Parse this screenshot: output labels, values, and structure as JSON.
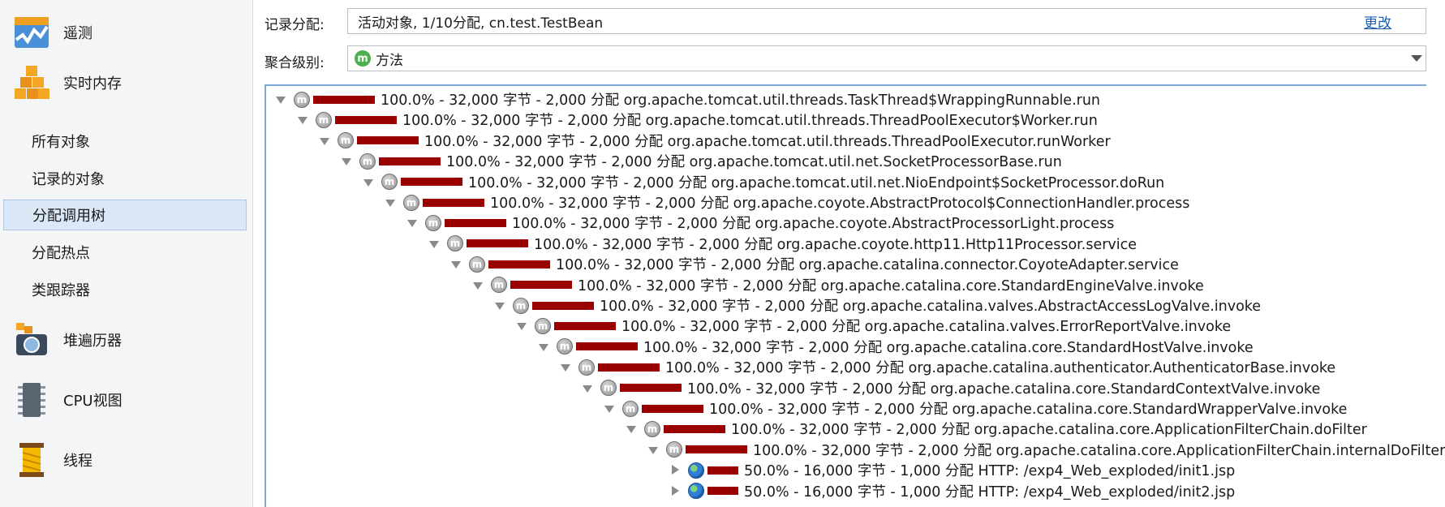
{
  "sidebar": {
    "sections": [
      {
        "label": "遥测",
        "icon": "telemetry-icon"
      },
      {
        "label": "实时内存",
        "icon": "live-memory-icon"
      },
      {
        "label": "堆遍历器",
        "icon": "heap-walker-icon"
      },
      {
        "label": "CPU视图",
        "icon": "cpu-view-icon"
      },
      {
        "label": "线程",
        "icon": "threads-icon"
      }
    ],
    "live_memory_items": [
      {
        "label": "所有对象"
      },
      {
        "label": "记录的对象"
      },
      {
        "label": "分配调用树"
      },
      {
        "label": "分配热点"
      },
      {
        "label": "类跟踪器"
      }
    ],
    "selected_item": "分配调用树"
  },
  "header": {
    "recorded_label": "记录分配:",
    "recorded_value": "活动对象, 1/10分配, cn.test.TestBean",
    "change_link": "更改",
    "aggregation_label": "聚合级别:",
    "aggregation_icon_letter": "m",
    "aggregation_value": "方法"
  },
  "tree": {
    "rows": [
      {
        "text": "100.0% - 32,000 字节 - 2,000 分配 org.apache.tomcat.util.threads.TaskThread$WrappingRunnable.run",
        "percent": 100.0,
        "toggle": "down",
        "icon": "method-icon"
      },
      {
        "text": "100.0% - 32,000 字节 - 2,000 分配 org.apache.tomcat.util.threads.ThreadPoolExecutor$Worker.run",
        "percent": 100.0,
        "toggle": "down",
        "icon": "method-icon"
      },
      {
        "text": "100.0% - 32,000 字节 - 2,000 分配 org.apache.tomcat.util.threads.ThreadPoolExecutor.runWorker",
        "percent": 100.0,
        "toggle": "down",
        "icon": "method-icon"
      },
      {
        "text": "100.0% - 32,000 字节 - 2,000 分配 org.apache.tomcat.util.net.SocketProcessorBase.run",
        "percent": 100.0,
        "toggle": "down",
        "icon": "method-icon"
      },
      {
        "text": "100.0% - 32,000 字节 - 2,000 分配 org.apache.tomcat.util.net.NioEndpoint$SocketProcessor.doRun",
        "percent": 100.0,
        "toggle": "down",
        "icon": "method-icon"
      },
      {
        "text": "100.0% - 32,000 字节 - 2,000 分配 org.apache.coyote.AbstractProtocol$ConnectionHandler.process",
        "percent": 100.0,
        "toggle": "down",
        "icon": "method-icon"
      },
      {
        "text": "100.0% - 32,000 字节 - 2,000 分配 org.apache.coyote.AbstractProcessorLight.process",
        "percent": 100.0,
        "toggle": "down",
        "icon": "method-icon"
      },
      {
        "text": "100.0% - 32,000 字节 - 2,000 分配 org.apache.coyote.http11.Http11Processor.service",
        "percent": 100.0,
        "toggle": "down",
        "icon": "method-icon"
      },
      {
        "text": "100.0% - 32,000 字节 - 2,000 分配 org.apache.catalina.connector.CoyoteAdapter.service",
        "percent": 100.0,
        "toggle": "down",
        "icon": "method-icon"
      },
      {
        "text": "100.0% - 32,000 字节 - 2,000 分配 org.apache.catalina.core.StandardEngineValve.invoke",
        "percent": 100.0,
        "toggle": "down",
        "icon": "method-icon"
      },
      {
        "text": "100.0% - 32,000 字节 - 2,000 分配 org.apache.catalina.valves.AbstractAccessLogValve.invoke",
        "percent": 100.0,
        "toggle": "down",
        "icon": "method-icon"
      },
      {
        "text": "100.0% - 32,000 字节 - 2,000 分配 org.apache.catalina.valves.ErrorReportValve.invoke",
        "percent": 100.0,
        "toggle": "down",
        "icon": "method-icon"
      },
      {
        "text": "100.0% - 32,000 字节 - 2,000 分配 org.apache.catalina.core.StandardHostValve.invoke",
        "percent": 100.0,
        "toggle": "down",
        "icon": "method-icon"
      },
      {
        "text": "100.0% - 32,000 字节 - 2,000 分配 org.apache.catalina.authenticator.AuthenticatorBase.invoke",
        "percent": 100.0,
        "toggle": "down",
        "icon": "method-icon"
      },
      {
        "text": "100.0% - 32,000 字节 - 2,000 分配 org.apache.catalina.core.StandardContextValve.invoke",
        "percent": 100.0,
        "toggle": "down",
        "icon": "method-icon"
      },
      {
        "text": "100.0% - 32,000 字节 - 2,000 分配 org.apache.catalina.core.StandardWrapperValve.invoke",
        "percent": 100.0,
        "toggle": "down",
        "icon": "method-icon"
      },
      {
        "text": "100.0% - 32,000 字节 - 2,000 分配 org.apache.catalina.core.ApplicationFilterChain.doFilter",
        "percent": 100.0,
        "toggle": "down",
        "icon": "method-icon"
      },
      {
        "text": "100.0% - 32,000 字节 - 2,000 分配 org.apache.catalina.core.ApplicationFilterChain.internalDoFilter",
        "percent": 100.0,
        "toggle": "down",
        "icon": "method-icon"
      },
      {
        "text": "50.0% - 16,000 字节 - 1,000 分配 HTTP: /exp4_Web_exploded/init1.jsp",
        "percent": 50.0,
        "toggle": "right",
        "icon": "globe-icon"
      },
      {
        "text": "50.0% - 16,000 字节 - 1,000 分配 HTTP: /exp4_Web_exploded/init2.jsp",
        "percent": 50.0,
        "toggle": "right",
        "icon": "globe-icon"
      }
    ]
  }
}
